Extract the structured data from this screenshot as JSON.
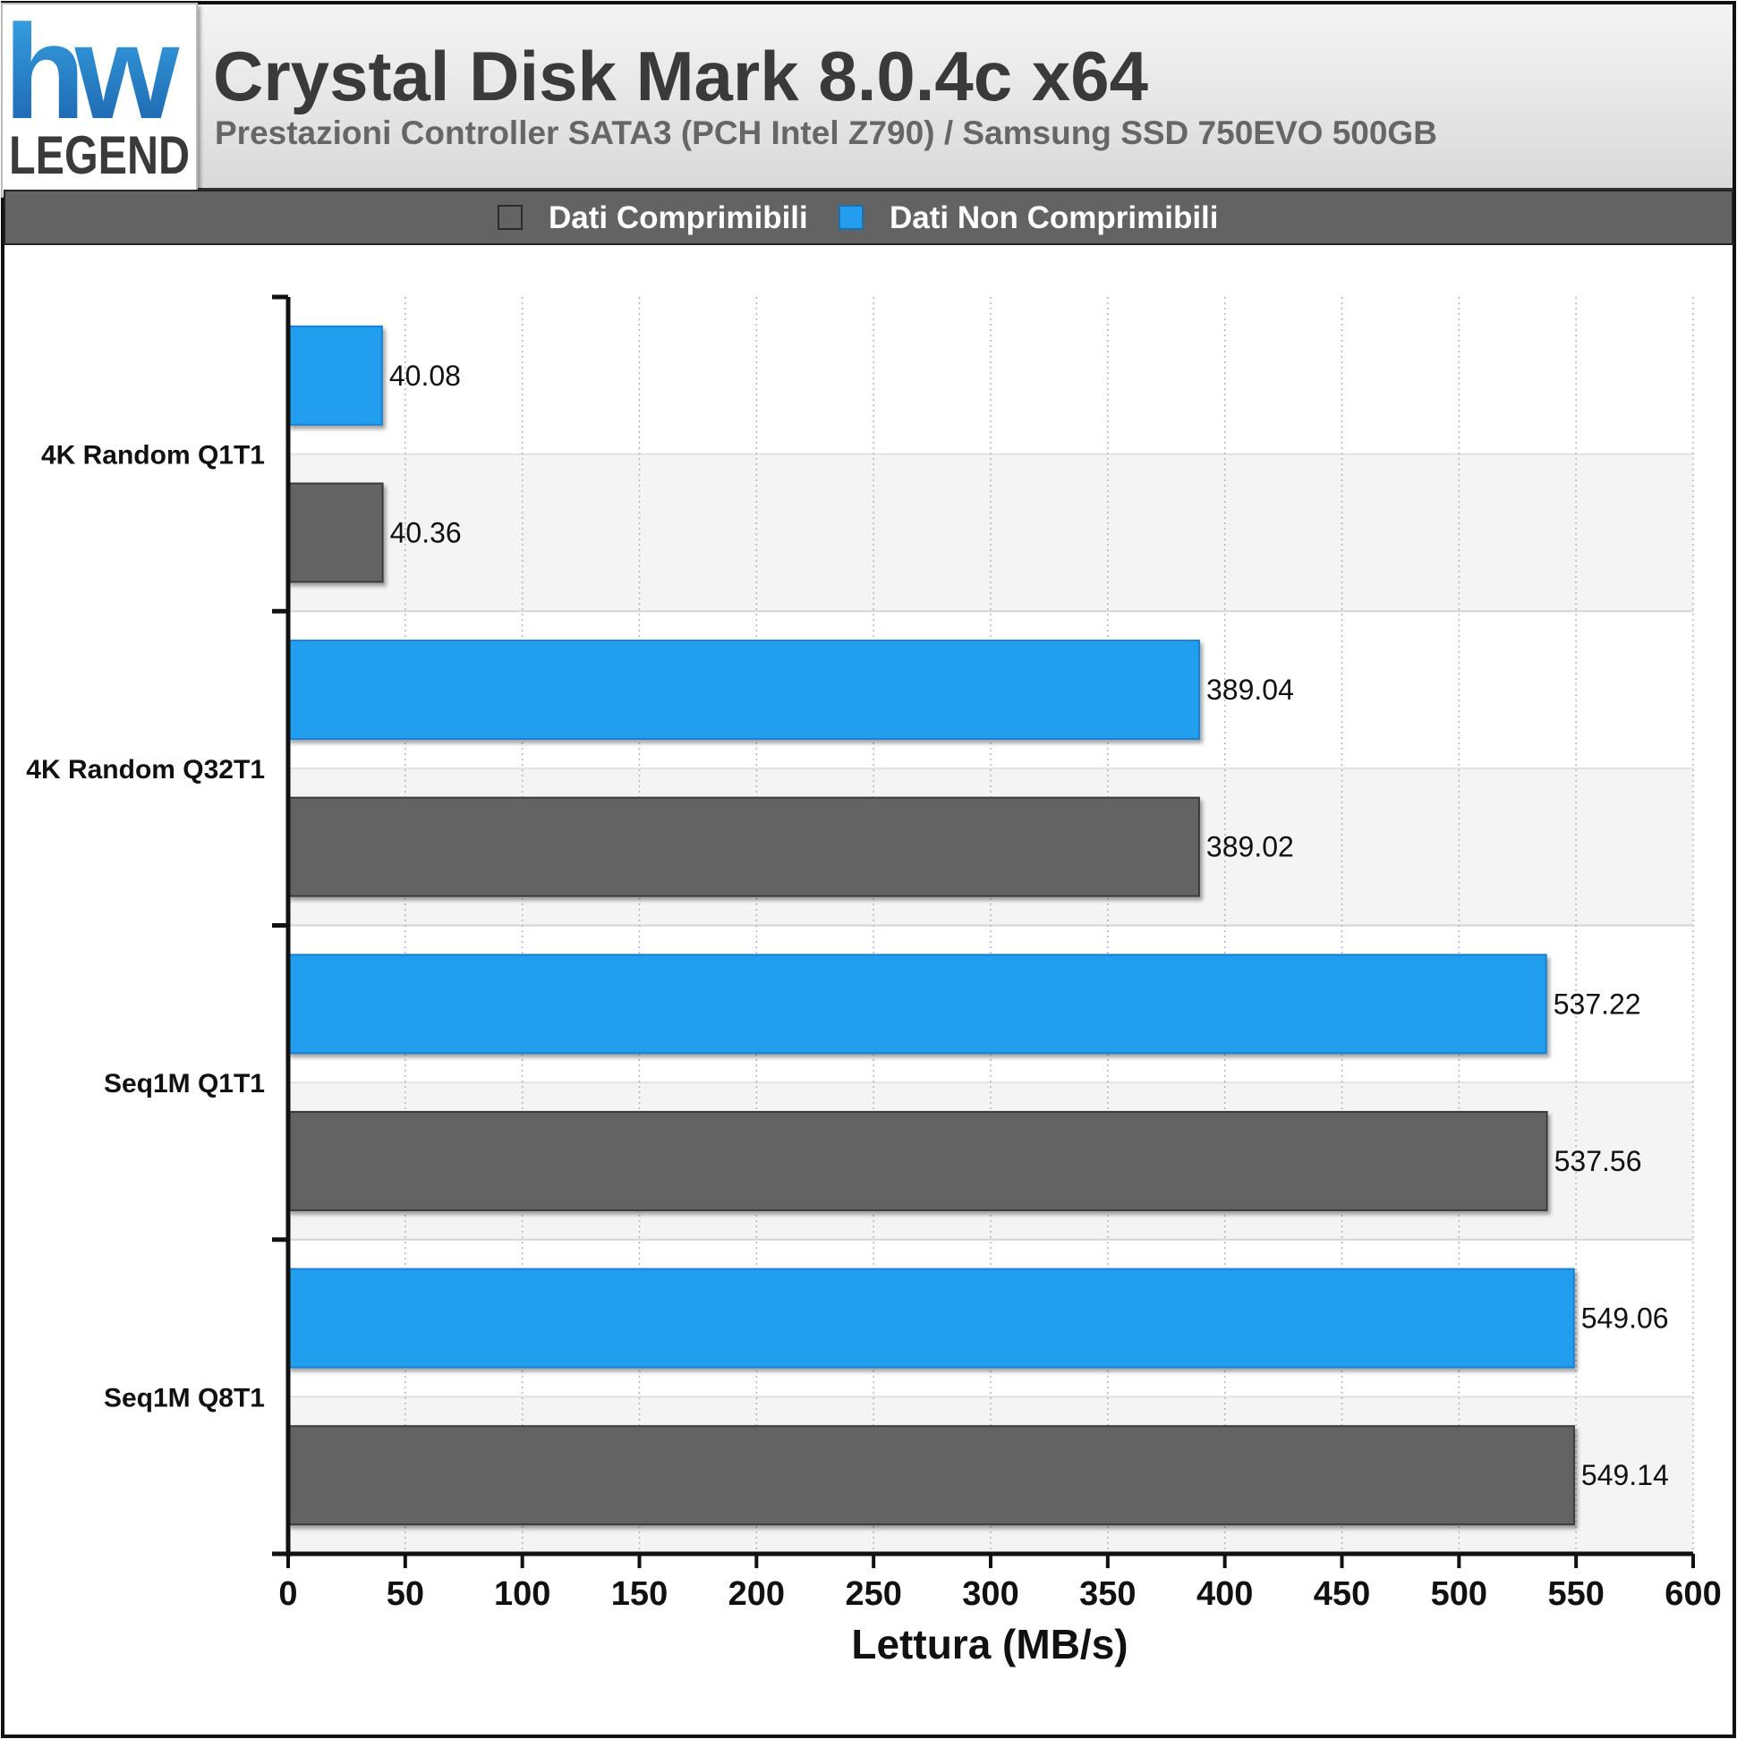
{
  "header": {
    "logo_text_top": "hw",
    "logo_text_bottom": "LEGEND",
    "title": "Crystal Disk Mark 8.0.4c x64",
    "subtitle": "Prestazioni Controller SATA3 (PCH Intel Z790) / Samsung SSD 750EVO 500GB"
  },
  "colors": {
    "compressible": "#636363",
    "non_compressible": "#239eef",
    "header_bg": "#e3e3e3",
    "legend_bar": "#636363"
  },
  "chart_data": {
    "type": "bar",
    "orientation": "horizontal",
    "categories": [
      "4K Random Q1T1",
      "4K Random Q32T1",
      "Seq1M Q1T1",
      "Seq1M Q8T1"
    ],
    "series": [
      {
        "name": "Dati Non Comprimibili",
        "color": "#239eef",
        "values": [
          40.08,
          389.04,
          537.22,
          549.06
        ]
      },
      {
        "name": "Dati Comprimibili",
        "color": "#636363",
        "values": [
          40.36,
          389.02,
          537.56,
          549.14
        ]
      }
    ],
    "legend": [
      "Dati Comprimibili",
      "Dati Non Comprimibili"
    ],
    "legend_placement": "top",
    "xlabel": "Lettura (MB/s)",
    "xlim": [
      0,
      600
    ],
    "xticks": [
      0,
      50,
      100,
      150,
      200,
      250,
      300,
      350,
      400,
      450,
      500,
      550,
      600
    ],
    "grid": true
  }
}
